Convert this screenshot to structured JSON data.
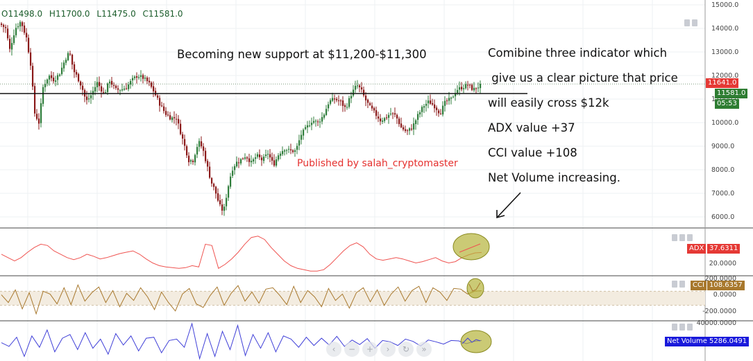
{
  "ohlc": {
    "o_label": "O",
    "o": "11498.0",
    "h_label": "H",
    "h": "11700.0",
    "l_label": "L",
    "l": "11475.0",
    "c_label": "C",
    "c": "11581.0"
  },
  "annotations": {
    "support": "Becoming new support at $11,200-$11,300",
    "line1": "Comibine three indicator which",
    "line2": " give us a clear picture that price",
    "line3": "will easily cross $12k",
    "line4": "ADX value +37",
    "line5": "CCI value +108",
    "line6": "Net Volume increasing.",
    "published": "Published by salah_cryptomaster"
  },
  "price_axis": {
    "ticks": [
      "15000.0",
      "14000.0",
      "13000.0",
      "12000.0",
      "11000.0",
      "10000.0",
      "9000.0",
      "8000.0",
      "7000.0",
      "6000.0"
    ],
    "tag_high": "11641.0",
    "tag_last": "11581.0",
    "tag_time": "05:53"
  },
  "adx_axis": {
    "label": "ADX",
    "value": "37.6311",
    "tick": "20.0000"
  },
  "cci_axis": {
    "label": "CCI",
    "value": "108.6357",
    "ticks": [
      "200.0000",
      "0.0000",
      "-200.0000"
    ]
  },
  "vol_axis": {
    "label": "Net Volume",
    "value": "5286.0491",
    "tick": "40000.0000"
  },
  "colors": {
    "up": "#2f7d3b",
    "down": "#8b1a1a",
    "adx": "#ef5350",
    "cci": "#a8782d",
    "cci_band": "#f3ece0",
    "volume": "#3f3fd8",
    "support_line": "#111111",
    "highlight": "#b5b33a",
    "tag_red": "#e53935",
    "tag_green": "#2e7d32",
    "tag_cci": "#a8782d",
    "tag_vol": "#1a1adb"
  },
  "chart_data": [
    {
      "type": "candlestick",
      "title": "",
      "ylim": [
        5600,
        15100
      ],
      "yticks": [
        6000,
        7000,
        8000,
        9000,
        10000,
        11000,
        12000,
        13000,
        14000,
        15000
      ],
      "support_level": 11200,
      "dotted_level": 11641,
      "close_path": [
        [
          0,
          14200
        ],
        [
          8,
          14000
        ],
        [
          14,
          13100
        ],
        [
          22,
          14000
        ],
        [
          30,
          14300
        ],
        [
          38,
          13600
        ],
        [
          44,
          12500
        ],
        [
          50,
          10400
        ],
        [
          56,
          10000
        ],
        [
          62,
          11500
        ],
        [
          70,
          12000
        ],
        [
          78,
          11800
        ],
        [
          86,
          12100
        ],
        [
          94,
          12700
        ],
        [
          100,
          13000
        ],
        [
          106,
          12200
        ],
        [
          112,
          11900
        ],
        [
          118,
          11500
        ],
        [
          124,
          10900
        ],
        [
          130,
          11100
        ],
        [
          140,
          11700
        ],
        [
          150,
          11200
        ],
        [
          158,
          11800
        ],
        [
          166,
          11400
        ],
        [
          174,
          11400
        ],
        [
          182,
          11500
        ],
        [
          190,
          11800
        ],
        [
          198,
          12000
        ],
        [
          206,
          11900
        ],
        [
          214,
          11700
        ],
        [
          222,
          11300
        ],
        [
          230,
          10800
        ],
        [
          238,
          10400
        ],
        [
          246,
          10200
        ],
        [
          254,
          10200
        ],
        [
          260,
          9600
        ],
        [
          266,
          9000
        ],
        [
          272,
          8400
        ],
        [
          278,
          8400
        ],
        [
          286,
          9200
        ],
        [
          292,
          8900
        ],
        [
          298,
          8200
        ],
        [
          304,
          7500
        ],
        [
          310,
          7100
        ],
        [
          316,
          6500
        ],
        [
          322,
          6200
        ],
        [
          328,
          7200
        ],
        [
          334,
          8000
        ],
        [
          340,
          8300
        ],
        [
          346,
          8400
        ],
        [
          354,
          8600
        ],
        [
          362,
          8300
        ],
        [
          370,
          8600
        ],
        [
          378,
          8400
        ],
        [
          386,
          8700
        ],
        [
          394,
          8200
        ],
        [
          402,
          8700
        ],
        [
          410,
          8900
        ],
        [
          418,
          8800
        ],
        [
          426,
          8800
        ],
        [
          434,
          9500
        ],
        [
          442,
          9800
        ],
        [
          450,
          10100
        ],
        [
          458,
          10000
        ],
        [
          466,
          10300
        ],
        [
          474,
          10900
        ],
        [
          482,
          11000
        ],
        [
          490,
          10900
        ],
        [
          498,
          10600
        ],
        [
          506,
          11200
        ],
        [
          514,
          11600
        ],
        [
          520,
          11400
        ],
        [
          526,
          11000
        ],
        [
          532,
          10700
        ],
        [
          540,
          10400
        ],
        [
          548,
          10100
        ],
        [
          556,
          10200
        ],
        [
          562,
          10400
        ],
        [
          570,
          10300
        ],
        [
          578,
          9800
        ],
        [
          586,
          9600
        ],
        [
          594,
          9800
        ],
        [
          602,
          10300
        ],
        [
          610,
          10700
        ],
        [
          618,
          10900
        ],
        [
          626,
          10700
        ],
        [
          634,
          10400
        ],
        [
          642,
          10900
        ],
        [
          650,
          11000
        ],
        [
          658,
          11400
        ],
        [
          666,
          11500
        ],
        [
          674,
          11600
        ],
        [
          682,
          11400
        ],
        [
          690,
          11550
        ],
        [
          695,
          11581
        ]
      ]
    },
    {
      "type": "line",
      "name": "ADX",
      "ylim": [
        5,
        70
      ],
      "yticks": [
        20
      ],
      "last": 37.6311,
      "values": [
        35,
        30,
        25,
        30,
        38,
        45,
        50,
        48,
        40,
        35,
        30,
        27,
        30,
        35,
        32,
        28,
        30,
        33,
        36,
        38,
        40,
        35,
        28,
        22,
        18,
        16,
        15,
        14,
        15,
        18,
        16,
        50,
        48,
        14,
        20,
        28,
        38,
        50,
        60,
        62,
        57,
        45,
        35,
        25,
        18,
        14,
        12,
        10,
        10,
        12,
        20,
        30,
        40,
        48,
        52,
        46,
        35,
        28,
        26,
        28,
        30,
        28,
        25,
        22,
        24,
        27,
        30,
        25,
        22,
        24,
        30,
        34,
        37,
        37.6
      ]
    },
    {
      "type": "line",
      "name": "CCI",
      "ylim": [
        -300,
        300
      ],
      "yticks": [
        200,
        0,
        -200
      ],
      "band": [
        -100,
        100
      ],
      "last": 108.6357,
      "values": [
        50,
        -60,
        120,
        -150,
        80,
        -220,
        100,
        60,
        -80,
        150,
        -90,
        190,
        -40,
        80,
        160,
        -60,
        110,
        -120,
        70,
        -30,
        150,
        20,
        -160,
        90,
        -60,
        -180,
        60,
        140,
        -80,
        -130,
        40,
        160,
        -100,
        70,
        180,
        -40,
        90,
        -70,
        130,
        150,
        40,
        -90,
        170,
        -60,
        110,
        20,
        -120,
        140,
        -30,
        60,
        -140,
        80,
        150,
        -50,
        120,
        -100,
        60,
        160,
        -40,
        110,
        170,
        -60,
        150,
        90,
        -30,
        140,
        130,
        60,
        100,
        108.6
      ]
    },
    {
      "type": "line",
      "name": "Net Volume",
      "ylim": [
        -40000,
        45000
      ],
      "yticks": [
        40000
      ],
      "last": 5286.0491,
      "values": [
        0,
        -8000,
        12000,
        -30000,
        15000,
        -10000,
        28000,
        -20000,
        10000,
        18000,
        -15000,
        22000,
        -12000,
        8000,
        -25000,
        20000,
        -5000,
        15000,
        -18000,
        10000,
        12000,
        -22000,
        5000,
        8000,
        -10000,
        42000,
        -35000,
        20000,
        -30000,
        25000,
        -15000,
        38000,
        -28000,
        18000,
        -12000,
        22000,
        -20000,
        15000,
        8000,
        -10000,
        12000,
        -6000,
        10000,
        -5000,
        14000,
        -8000,
        6000,
        -4000,
        9000,
        -12000,
        5000,
        2000,
        -6000,
        8000,
        3000,
        -7000,
        6000,
        2000,
        -3000,
        5000,
        4000,
        -2000,
        3000,
        5286
      ]
    }
  ]
}
